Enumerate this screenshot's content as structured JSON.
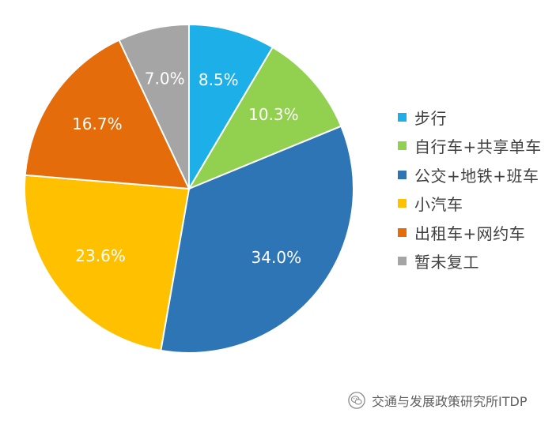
{
  "chart_data": {
    "type": "pie",
    "categories": [
      "步行",
      "自行车+共享单车",
      "公交+地铁+班车",
      "小汽车",
      "出租车+网约车",
      "暂未复工"
    ],
    "values": [
      8.5,
      10.3,
      34.0,
      23.6,
      16.7,
      7.0
    ],
    "value_labels": [
      "8.5%",
      "10.3%",
      "34.0%",
      "23.6%",
      "16.7%",
      "7.0%"
    ],
    "colors": [
      "#1CAFE8",
      "#92D050",
      "#2E75B6",
      "#FFC000",
      "#E46C0A",
      "#A5A5A5"
    ],
    "start_angle": "12 o'clock",
    "direction": "clockwise",
    "legend": "right"
  },
  "watermark": {
    "text": "交通与发展政策研究所ITDP",
    "icon": "wechat-icon"
  }
}
